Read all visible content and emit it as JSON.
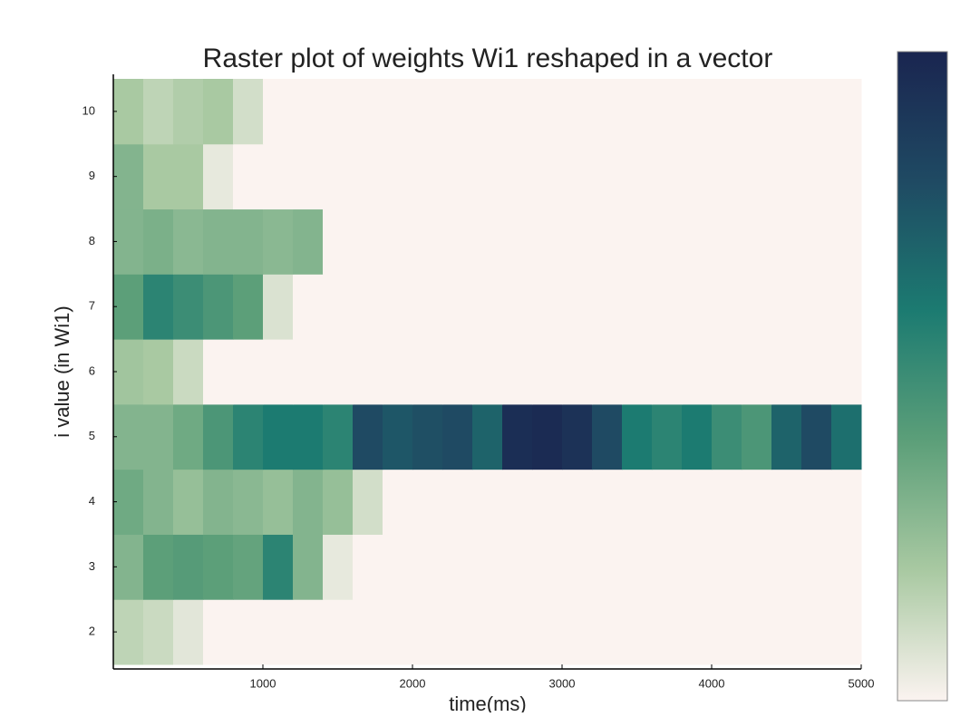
{
  "chart_data": {
    "type": "heatmap",
    "title": "Raster plot of weights Wi1 reshaped in a vector",
    "x_label": "time(ms)",
    "y_label": "i value (in Wi1)",
    "xlim": [
      0,
      5000
    ],
    "xticks": [
      1000,
      2000,
      3000,
      4000,
      5000
    ],
    "ylim": [
      1.5,
      10.5
    ],
    "yticks": [
      2,
      3,
      4,
      5,
      6,
      7,
      8,
      9,
      10
    ],
    "bins": [
      0,
      200,
      400,
      600,
      800,
      1000,
      1200,
      1400,
      1600,
      1800,
      2000,
      2200,
      2400,
      2600,
      2800,
      3000,
      3200,
      3400,
      3600,
      3800,
      4000,
      4200,
      4400,
      4600,
      4800,
      5000
    ],
    "clim": [
      0,
      1
    ],
    "colormap": [
      "#fbf3f0",
      "#a9c9a2",
      "#5c9f79",
      "#1c7b71",
      "#1f4a63",
      "#1a2550"
    ],
    "z": [
      [
        0.15,
        0.12,
        0.06,
        0,
        0,
        0,
        0,
        0,
        0,
        0,
        0,
        0,
        0,
        0,
        0,
        0,
        0,
        0,
        0,
        0,
        0,
        0,
        0,
        0,
        0
      ],
      [
        0.3,
        0.4,
        0.42,
        0.4,
        0.38,
        0.55,
        0.3,
        0.05,
        0,
        0,
        0,
        0,
        0,
        0,
        0,
        0,
        0,
        0,
        0,
        0,
        0,
        0,
        0,
        0,
        0
      ],
      [
        0.35,
        0.3,
        0.25,
        0.3,
        0.28,
        0.25,
        0.3,
        0.25,
        0.1,
        0,
        0,
        0,
        0,
        0,
        0,
        0,
        0,
        0,
        0,
        0,
        0,
        0,
        0,
        0,
        0
      ],
      [
        0.3,
        0.3,
        0.35,
        0.45,
        0.55,
        0.6,
        0.6,
        0.55,
        0.8,
        0.75,
        0.78,
        0.8,
        0.7,
        0.95,
        0.97,
        0.93,
        0.8,
        0.6,
        0.55,
        0.6,
        0.5,
        0.45,
        0.7,
        0.8,
        0.65
      ],
      [
        0.22,
        0.2,
        0.12,
        0,
        0,
        0,
        0,
        0,
        0,
        0,
        0,
        0,
        0,
        0,
        0,
        0,
        0,
        0,
        0,
        0,
        0,
        0,
        0,
        0,
        0
      ],
      [
        0.4,
        0.55,
        0.5,
        0.45,
        0.4,
        0.08,
        0,
        0,
        0,
        0,
        0,
        0,
        0,
        0,
        0,
        0,
        0,
        0,
        0,
        0,
        0,
        0,
        0,
        0,
        0
      ],
      [
        0.3,
        0.32,
        0.28,
        0.3,
        0.3,
        0.28,
        0.3,
        0,
        0,
        0,
        0,
        0,
        0,
        0,
        0,
        0,
        0,
        0,
        0,
        0,
        0,
        0,
        0,
        0,
        0
      ],
      [
        0.3,
        0.2,
        0.2,
        0.05,
        0,
        0,
        0,
        0,
        0,
        0,
        0,
        0,
        0,
        0,
        0,
        0,
        0,
        0,
        0,
        0,
        0,
        0,
        0,
        0,
        0
      ],
      [
        0.2,
        0.15,
        0.18,
        0.2,
        0.1,
        0,
        0,
        0,
        0,
        0,
        0,
        0,
        0,
        0,
        0,
        0,
        0,
        0,
        0,
        0,
        0,
        0,
        0,
        0,
        0
      ]
    ]
  }
}
